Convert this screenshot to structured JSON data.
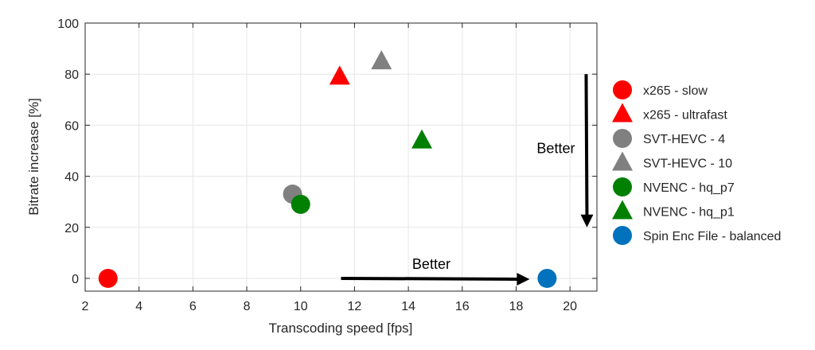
{
  "chart_data": {
    "type": "scatter",
    "title": "",
    "xlabel": "Transcoding speed [fps]",
    "ylabel": "Bitrate increase [%]",
    "xlim": [
      2,
      21
    ],
    "ylim": [
      -5,
      100
    ],
    "xticks": [
      2,
      4,
      6,
      8,
      10,
      12,
      14,
      16,
      18,
      20
    ],
    "yticks": [
      0,
      20,
      40,
      60,
      80,
      100
    ],
    "grid": true,
    "legend_placement": "outside-right",
    "series": [
      {
        "name": "x265 - slow",
        "marker": "circle",
        "color": "#ff0000",
        "x": 2.85,
        "y": 0
      },
      {
        "name": "x265 - ultrafast",
        "marker": "triangle",
        "color": "#ff0000",
        "x": 11.45,
        "y": 79
      },
      {
        "name": "SVT-HEVC - 4",
        "marker": "circle",
        "color": "#808080",
        "x": 9.7,
        "y": 33
      },
      {
        "name": "SVT-HEVC - 10",
        "marker": "triangle",
        "color": "#808080",
        "x": 13.0,
        "y": 85
      },
      {
        "name": "NVENC - hq_p7",
        "marker": "circle",
        "color": "#008000",
        "x": 10.0,
        "y": 29
      },
      {
        "name": "NVENC - hq_p1",
        "marker": "triangle",
        "color": "#008000",
        "x": 14.5,
        "y": 54
      },
      {
        "name": "Spin Enc File - balanced",
        "marker": "circle",
        "color": "#0072bd",
        "x": 19.15,
        "y": 0
      }
    ],
    "annotations": [
      {
        "text": "Better",
        "arrow_from": [
          11.5,
          0
        ],
        "arrow_to": [
          18.5,
          0
        ]
      },
      {
        "text": "Better",
        "arrow_from": [
          20.6,
          80
        ],
        "arrow_to": [
          20.6,
          20
        ]
      }
    ]
  }
}
